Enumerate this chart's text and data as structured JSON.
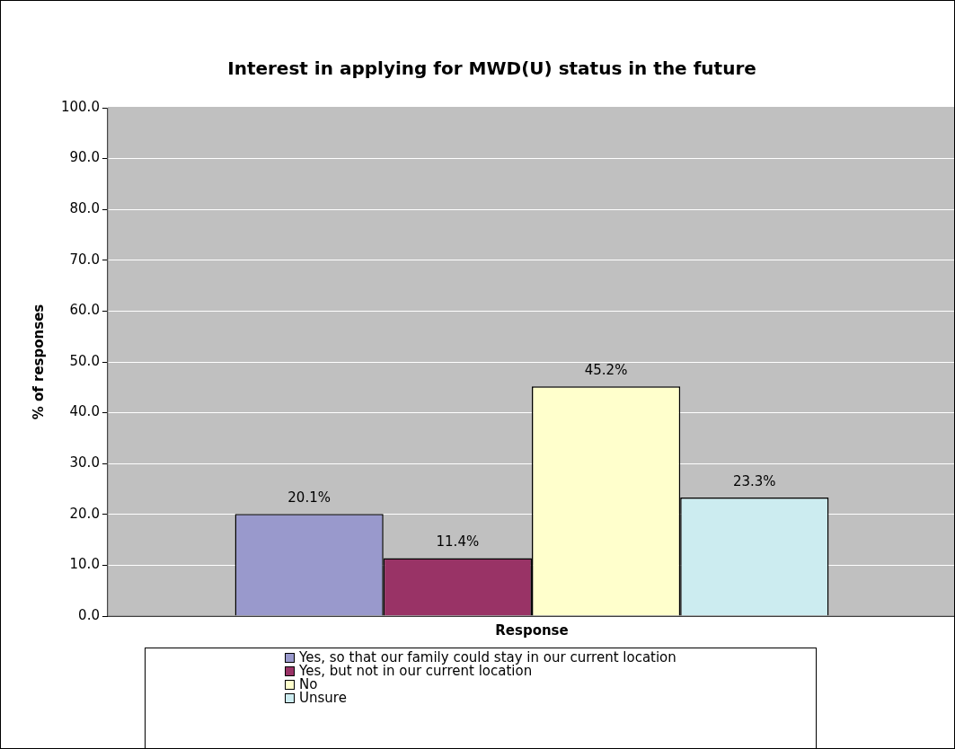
{
  "chart_data": {
    "type": "bar",
    "title": "Interest in applying for MWD(U) status in the future",
    "xlabel": "Response",
    "ylabel": "% of responses",
    "categories": [
      null
    ],
    "series": [
      {
        "name": "Yes, so that our family could stay in our current location",
        "color": "#9999cc",
        "values": [
          20.1
        ],
        "value_labels": [
          "20.1%"
        ]
      },
      {
        "name": "Yes, but not in our current location",
        "color": "#993366",
        "values": [
          11.4
        ],
        "value_labels": [
          "11.4%"
        ]
      },
      {
        "name": "No",
        "color": "#ffffcc",
        "values": [
          45.2
        ],
        "value_labels": [
          "45.2%"
        ]
      },
      {
        "name": "Unsure",
        "color": "#ccecf0",
        "values": [
          23.3
        ],
        "value_labels": [
          "23.3%"
        ]
      }
    ],
    "ylim": [
      0,
      100
    ],
    "yticks": [
      {
        "value": 0,
        "label": "0.0"
      },
      {
        "value": 10,
        "label": "10.0"
      },
      {
        "value": 20,
        "label": "20.0"
      },
      {
        "value": 30,
        "label": "30.0"
      },
      {
        "value": 40,
        "label": "40.0"
      },
      {
        "value": 50,
        "label": "50.0"
      },
      {
        "value": 60,
        "label": "60.0"
      },
      {
        "value": 70,
        "label": "70.0"
      },
      {
        "value": 80,
        "label": "80.0"
      },
      {
        "value": 90,
        "label": "90.0"
      },
      {
        "value": 100,
        "label": "100.0"
      }
    ],
    "grid": "y",
    "legend": "bottom"
  }
}
